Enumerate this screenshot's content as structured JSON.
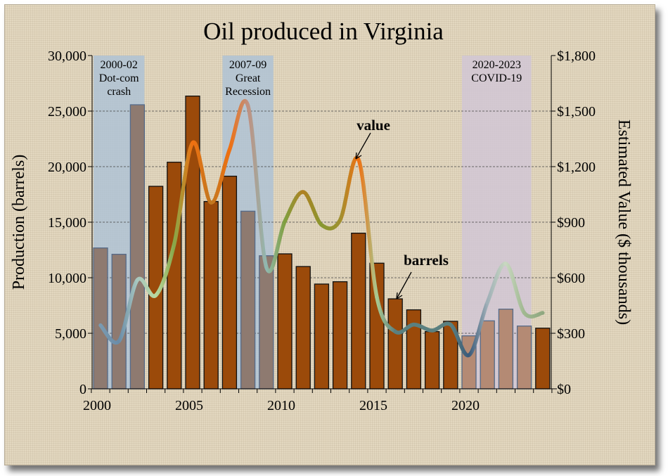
{
  "chart_data": {
    "type": "bar+line",
    "title": "Oil produced in Virginia",
    "ylabel": "Production (barrels)",
    "y2label": "Estimated Value ($ thousands)",
    "x": [
      2000,
      2001,
      2002,
      2003,
      2004,
      2005,
      2006,
      2007,
      2008,
      2009,
      2010,
      2011,
      2012,
      2013,
      2014,
      2015,
      2016,
      2017,
      2018,
      2019,
      2020,
      2021,
      2022,
      2023,
      2024
    ],
    "xticks": [
      "2000",
      "2005",
      "2010",
      "2015",
      "2020"
    ],
    "xlim": [
      2000,
      2024
    ],
    "ylim": [
      0,
      30000
    ],
    "yticks": [
      "0",
      "5,000",
      "10,000",
      "15,000",
      "20,000",
      "25,000",
      "30,000"
    ],
    "y2lim": [
      0,
      1800
    ],
    "y2ticks": [
      "$0",
      "$300",
      "$600",
      "$900",
      "$1,200",
      "$1,500",
      "$1,800"
    ],
    "grid": "horizontal dashed",
    "series": [
      {
        "name": "barrels",
        "type": "bar",
        "values": [
          12680,
          12110,
          25570,
          18230,
          20400,
          26350,
          16860,
          19140,
          15990,
          11980,
          12150,
          11010,
          9430,
          9640,
          14010,
          11310,
          8100,
          7110,
          5150,
          6080,
          4770,
          6120,
          7170,
          5650,
          5460
        ],
        "colors": [
          "#8e7a70",
          "#8e7a70",
          "#8e7a70",
          "#9b4a0a",
          "#9b4a0a",
          "#9b4a0a",
          "#9b4a0a",
          "#9b4a0a",
          "#8e7a70",
          "#8e7a70",
          "#9b4a0a",
          "#9b4a0a",
          "#9b4a0a",
          "#9b4a0a",
          "#9b4a0a",
          "#9b4a0a",
          "#9b4a0a",
          "#9b4a0a",
          "#9b4a0a",
          "#9b4a0a",
          "#b48a74",
          "#b48a74",
          "#b48a74",
          "#b48a74",
          "#9b4a0a"
        ]
      },
      {
        "name": "value",
        "type": "line",
        "axis": "right",
        "values": [
          343,
          258,
          588,
          505,
          783,
          1329,
          1006,
          1291,
          1530,
          657,
          904,
          1063,
          885,
          911,
          1239,
          494,
          309,
          347,
          315,
          347,
          182,
          467,
          676,
          410,
          410
        ],
        "colors": [
          "#7a9ab0",
          "#6a8ca8",
          "#a8c8c0",
          "#b8d8a0",
          "#88a848",
          "#f07010",
          "#c07820",
          "#f07010",
          "#c09080",
          "#90b8b0",
          "#80a040",
          "#b08020",
          "#889830",
          "#a09030",
          "#f07010",
          "#a8c890",
          "#5a8080",
          "#5a8080",
          "#5a8080",
          "#5a8080",
          "#3a5a7a",
          "#a0b0b8",
          "#c8d8c0",
          "#a0b890",
          "#90a880"
        ]
      }
    ],
    "bands": [
      {
        "from": 2000,
        "to": 2002,
        "label1": "2000-02",
        "label2": "Dot-com",
        "label3": "crash",
        "color": "#a8c0d8"
      },
      {
        "from": 2007,
        "to": 2009,
        "label1": "2007-09",
        "label2": "Great",
        "label3": "Recession",
        "color": "#a8c0d8"
      },
      {
        "from": 2020,
        "to": 2023,
        "label1": "2020-2023",
        "label2": "COVID-19",
        "label3": "",
        "color": "#cfc4d8"
      }
    ],
    "annotations": {
      "value": "value",
      "barrels": "barrels"
    }
  }
}
